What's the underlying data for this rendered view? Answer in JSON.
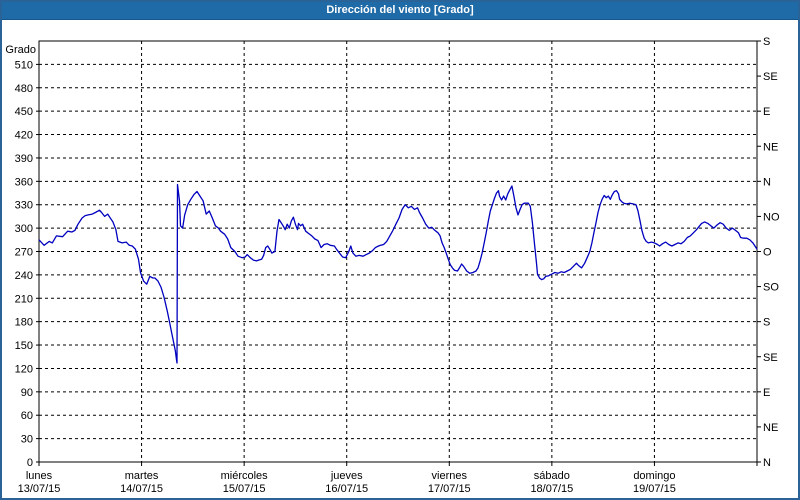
{
  "window": {
    "title": "Dirección del viento [Grado]"
  },
  "colors": {
    "titlebar_bg": "#1f6ba8",
    "titlebar_text": "#ffffff",
    "frame_border": "#2a6398",
    "background": "#ffffff",
    "grid": "#000000",
    "axis": "#000000",
    "line": "#0000bf"
  },
  "chart_data": {
    "type": "line",
    "title": "Dirección del viento [Grado]",
    "ylabel": "Grado",
    "ylim": [
      0,
      540
    ],
    "y_left_tick_step": 30,
    "y_left_tick_min": 0,
    "y_left_tick_max": 510,
    "grid": "dashed",
    "legend": "none",
    "y_right_ticks": [
      {
        "deg": 540,
        "label": "S"
      },
      {
        "deg": 495,
        "label": "SE"
      },
      {
        "deg": 450,
        "label": "E"
      },
      {
        "deg": 405,
        "label": "NE"
      },
      {
        "deg": 360,
        "label": "N"
      },
      {
        "deg": 315,
        "label": "NO"
      },
      {
        "deg": 270,
        "label": "O"
      },
      {
        "deg": 225,
        "label": "SO"
      },
      {
        "deg": 180,
        "label": "S"
      },
      {
        "deg": 135,
        "label": "SE"
      },
      {
        "deg": 90,
        "label": "E"
      },
      {
        "deg": 45,
        "label": "NE"
      },
      {
        "deg": 0,
        "label": "N"
      }
    ],
    "xlim_days": [
      0,
      7
    ],
    "x_days": [
      {
        "name": "lunes",
        "date": "13/07/15"
      },
      {
        "name": "martes",
        "date": "14/07/15"
      },
      {
        "name": "miércoles",
        "date": "15/07/15"
      },
      {
        "name": "jueves",
        "date": "16/07/15"
      },
      {
        "name": "viernes",
        "date": "17/07/15"
      },
      {
        "name": "sábado",
        "date": "18/07/15"
      },
      {
        "name": "domingo",
        "date": "19/07/15"
      }
    ],
    "series": [
      {
        "name": "Dirección del viento",
        "unit": "Grado",
        "color": "#0000bf",
        "points": [
          [
            0,
            285
          ],
          [
            0.05,
            278
          ],
          [
            0.1,
            283
          ],
          [
            0.13,
            281
          ],
          [
            0.17,
            290
          ],
          [
            0.23,
            289
          ],
          [
            0.28,
            296
          ],
          [
            0.32,
            295
          ],
          [
            0.35,
            297
          ],
          [
            0.38,
            305
          ],
          [
            0.42,
            313
          ],
          [
            0.45,
            316
          ],
          [
            0.48,
            317
          ],
          [
            0.52,
            318
          ],
          [
            0.55,
            320
          ],
          [
            0.59,
            323
          ],
          [
            0.61,
            320
          ],
          [
            0.64,
            315
          ],
          [
            0.67,
            318
          ],
          [
            0.7,
            312
          ],
          [
            0.72,
            308
          ],
          [
            0.75,
            298
          ],
          [
            0.77,
            283
          ],
          [
            0.81,
            281
          ],
          [
            0.85,
            282
          ],
          [
            0.88,
            278
          ],
          [
            0.91,
            277
          ],
          [
            0.94,
            273
          ],
          [
            0.97,
            260
          ],
          [
            0.99,
            243
          ],
          [
            1.02,
            232
          ],
          [
            1.05,
            228
          ],
          [
            1.08,
            238
          ],
          [
            1.11,
            236
          ],
          [
            1.13,
            236
          ],
          [
            1.16,
            232
          ],
          [
            1.19,
            224
          ],
          [
            1.22,
            211
          ],
          [
            1.25,
            194
          ],
          [
            1.27,
            181
          ],
          [
            1.29,
            168
          ],
          [
            1.31,
            155
          ],
          [
            1.33,
            142
          ],
          [
            1.34,
            132
          ],
          [
            1.345,
            127
          ],
          [
            1.35,
            356
          ],
          [
            1.37,
            335
          ],
          [
            1.38,
            303
          ],
          [
            1.4,
            300
          ],
          [
            1.42,
            317
          ],
          [
            1.45,
            330
          ],
          [
            1.48,
            337
          ],
          [
            1.51,
            343
          ],
          [
            1.54,
            347
          ],
          [
            1.57,
            341
          ],
          [
            1.6,
            335
          ],
          [
            1.63,
            318
          ],
          [
            1.66,
            322
          ],
          [
            1.69,
            313
          ],
          [
            1.72,
            303
          ],
          [
            1.75,
            300
          ],
          [
            1.77,
            296
          ],
          [
            1.81,
            292
          ],
          [
            1.84,
            286
          ],
          [
            1.87,
            275
          ],
          [
            1.91,
            270
          ],
          [
            1.94,
            264
          ],
          [
            1.98,
            262
          ],
          [
            2.01,
            263
          ],
          [
            2.03,
            266
          ],
          [
            2.06,
            262
          ],
          [
            2.09,
            259
          ],
          [
            2.12,
            258
          ],
          [
            2.14,
            259
          ],
          [
            2.17,
            260
          ],
          [
            2.19,
            265
          ],
          [
            2.21,
            275
          ],
          [
            2.23,
            277
          ],
          [
            2.25,
            273
          ],
          [
            2.27,
            268
          ],
          [
            2.3,
            270
          ],
          [
            2.32,
            296
          ],
          [
            2.34,
            311
          ],
          [
            2.36,
            307
          ],
          [
            2.38,
            303
          ],
          [
            2.4,
            298
          ],
          [
            2.42,
            305
          ],
          [
            2.44,
            300
          ],
          [
            2.46,
            309
          ],
          [
            2.48,
            314
          ],
          [
            2.5,
            305
          ],
          [
            2.52,
            298
          ],
          [
            2.53,
            306
          ],
          [
            2.55,
            303
          ],
          [
            2.57,
            305
          ],
          [
            2.6,
            296
          ],
          [
            2.63,
            293
          ],
          [
            2.66,
            290
          ],
          [
            2.69,
            286
          ],
          [
            2.72,
            284
          ],
          [
            2.75,
            275
          ],
          [
            2.78,
            279
          ],
          [
            2.81,
            280
          ],
          [
            2.84,
            278
          ],
          [
            2.88,
            277
          ],
          [
            2.9,
            273
          ],
          [
            2.93,
            268
          ],
          [
            2.96,
            263
          ],
          [
            2.99,
            262
          ],
          [
            3.02,
            270
          ],
          [
            3.04,
            277
          ],
          [
            3.06,
            268
          ],
          [
            3.09,
            264
          ],
          [
            3.12,
            265
          ],
          [
            3.16,
            264
          ],
          [
            3.19,
            266
          ],
          [
            3.22,
            268
          ],
          [
            3.25,
            271
          ],
          [
            3.28,
            275
          ],
          [
            3.31,
            277
          ],
          [
            3.33,
            278
          ],
          [
            3.36,
            279
          ],
          [
            3.39,
            283
          ],
          [
            3.42,
            290
          ],
          [
            3.45,
            297
          ],
          [
            3.48,
            305
          ],
          [
            3.51,
            313
          ],
          [
            3.54,
            324
          ],
          [
            3.57,
            330
          ],
          [
            3.6,
            326
          ],
          [
            3.63,
            328
          ],
          [
            3.66,
            324
          ],
          [
            3.69,
            326
          ],
          [
            3.71,
            320
          ],
          [
            3.74,
            313
          ],
          [
            3.77,
            305
          ],
          [
            3.8,
            300
          ],
          [
            3.83,
            301
          ],
          [
            3.86,
            297
          ],
          [
            3.89,
            294
          ],
          [
            3.91,
            290
          ],
          [
            3.93,
            281
          ],
          [
            3.95,
            275
          ],
          [
            3.97,
            268
          ],
          [
            3.99,
            260
          ],
          [
            4.01,
            253
          ],
          [
            4.03,
            249
          ],
          [
            4.05,
            246
          ],
          [
            4.08,
            245
          ],
          [
            4.1,
            249
          ],
          [
            4.12,
            254
          ],
          [
            4.14,
            251
          ],
          [
            4.17,
            245
          ],
          [
            4.2,
            242
          ],
          [
            4.23,
            243
          ],
          [
            4.26,
            245
          ],
          [
            4.28,
            249
          ],
          [
            4.3,
            258
          ],
          [
            4.32,
            268
          ],
          [
            4.34,
            281
          ],
          [
            4.36,
            294
          ],
          [
            4.38,
            309
          ],
          [
            4.4,
            322
          ],
          [
            4.42,
            330
          ],
          [
            4.44,
            338
          ],
          [
            4.46,
            345
          ],
          [
            4.48,
            348
          ],
          [
            4.49,
            341
          ],
          [
            4.51,
            336
          ],
          [
            4.53,
            341
          ],
          [
            4.55,
            336
          ],
          [
            4.57,
            344
          ],
          [
            4.59,
            349
          ],
          [
            4.61,
            354
          ],
          [
            4.63,
            341
          ],
          [
            4.65,
            326
          ],
          [
            4.67,
            317
          ],
          [
            4.69,
            324
          ],
          [
            4.71,
            330
          ],
          [
            4.73,
            332
          ],
          [
            4.75,
            332
          ],
          [
            4.77,
            332
          ],
          [
            4.79,
            328
          ],
          [
            4.81,
            307
          ],
          [
            4.83,
            281
          ],
          [
            4.85,
            255
          ],
          [
            4.86,
            241
          ],
          [
            4.88,
            236
          ],
          [
            4.9,
            234
          ],
          [
            4.92,
            235
          ],
          [
            4.94,
            238
          ],
          [
            4.97,
            239
          ],
          [
            5,
            241
          ],
          [
            5.03,
            243
          ],
          [
            5.06,
            242
          ],
          [
            5.09,
            244
          ],
          [
            5.12,
            243
          ],
          [
            5.15,
            245
          ],
          [
            5.18,
            247
          ],
          [
            5.21,
            251
          ],
          [
            5.24,
            255
          ],
          [
            5.26,
            252
          ],
          [
            5.29,
            249
          ],
          [
            5.32,
            255
          ],
          [
            5.35,
            264
          ],
          [
            5.37,
            270
          ],
          [
            5.39,
            281
          ],
          [
            5.41,
            294
          ],
          [
            5.43,
            307
          ],
          [
            5.45,
            320
          ],
          [
            5.47,
            330
          ],
          [
            5.49,
            337
          ],
          [
            5.51,
            342
          ],
          [
            5.53,
            339
          ],
          [
            5.55,
            341
          ],
          [
            5.57,
            337
          ],
          [
            5.59,
            343
          ],
          [
            5.61,
            347
          ],
          [
            5.63,
            348
          ],
          [
            5.65,
            344
          ],
          [
            5.66,
            337
          ],
          [
            5.68,
            334
          ],
          [
            5.7,
            332
          ],
          [
            5.73,
            331
          ],
          [
            5.76,
            332
          ],
          [
            5.79,
            331
          ],
          [
            5.82,
            330
          ],
          [
            5.84,
            322
          ],
          [
            5.86,
            309
          ],
          [
            5.88,
            296
          ],
          [
            5.9,
            287
          ],
          [
            5.92,
            283
          ],
          [
            5.94,
            281
          ],
          [
            5.97,
            282
          ],
          [
            6,
            281
          ],
          [
            6.03,
            279
          ],
          [
            6.05,
            277
          ],
          [
            6.08,
            280
          ],
          [
            6.11,
            282
          ],
          [
            6.14,
            279
          ],
          [
            6.17,
            277
          ],
          [
            6.2,
            279
          ],
          [
            6.23,
            281
          ],
          [
            6.26,
            280
          ],
          [
            6.29,
            283
          ],
          [
            6.32,
            288
          ],
          [
            6.35,
            290
          ],
          [
            6.38,
            294
          ],
          [
            6.41,
            298
          ],
          [
            6.44,
            303
          ],
          [
            6.46,
            306
          ],
          [
            6.49,
            308
          ],
          [
            6.52,
            306
          ],
          [
            6.55,
            303
          ],
          [
            6.58,
            300
          ],
          [
            6.61,
            304
          ],
          [
            6.64,
            307
          ],
          [
            6.67,
            305
          ],
          [
            6.7,
            300
          ],
          [
            6.73,
            297
          ],
          [
            6.76,
            300
          ],
          [
            6.79,
            297
          ],
          [
            6.82,
            294
          ],
          [
            6.84,
            288
          ],
          [
            6.87,
            287
          ],
          [
            6.9,
            287
          ],
          [
            6.93,
            285
          ],
          [
            6.96,
            281
          ],
          [
            6.99,
            275
          ],
          [
            7,
            273
          ]
        ]
      }
    ]
  }
}
